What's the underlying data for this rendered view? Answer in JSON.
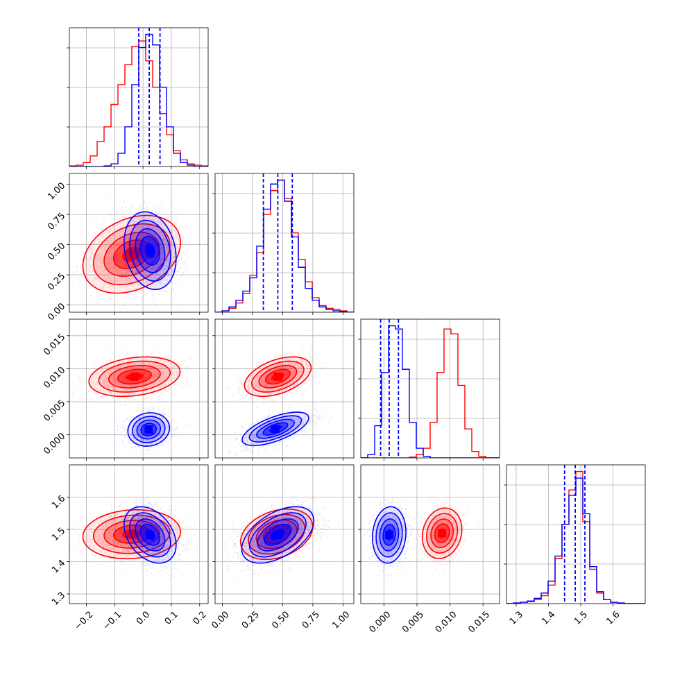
{
  "chart_data": {
    "type": "corner",
    "grid": true,
    "legend": "none",
    "colors": {
      "model_a": "#ff0000",
      "model_b": "#0000ff"
    },
    "parameters": [
      {
        "range": [
          -0.26,
          0.23
        ],
        "ticks": [
          -0.2,
          -0.1,
          0.0,
          0.1,
          0.2
        ],
        "tick_labels": [
          "−0.2",
          "−0.1",
          "0.0",
          "0.1",
          "0.2"
        ]
      },
      {
        "range": [
          -0.06,
          1.09
        ],
        "ticks": [
          0.0,
          0.25,
          0.5,
          0.75,
          1.0
        ],
        "tick_labels": [
          "0.00",
          "0.25",
          "0.50",
          "0.75",
          "1.00"
        ]
      },
      {
        "range": [
          -0.0035,
          0.0175
        ],
        "ticks": [
          0.0,
          0.005,
          0.01,
          0.015
        ],
        "tick_labels": [
          "0.000",
          "0.005",
          "0.010",
          "0.015"
        ]
      },
      {
        "range": [
          1.27,
          1.7
        ],
        "ticks": [
          1.3,
          1.4,
          1.5,
          1.6
        ],
        "tick_labels": [
          "1.3",
          "1.4",
          "1.5",
          "1.6"
        ]
      }
    ],
    "quantiles": [
      [
        -0.015,
        0.022,
        0.06
      ],
      [
        0.34,
        0.46,
        0.58
      ],
      [
        -0.0005,
        0.0008,
        0.0022
      ],
      [
        1.45,
        1.483,
        1.513
      ]
    ],
    "diagonal_hist": [
      {
        "edges": [
          -0.26,
          -0.2355,
          -0.211,
          -0.1865,
          -0.162,
          -0.1375,
          -0.113,
          -0.0885,
          -0.064,
          -0.0395,
          -0.015,
          0.0095,
          0.034,
          0.0585,
          0.083,
          0.1075,
          0.132,
          0.1565,
          0.181,
          0.2055,
          0.23
        ],
        "red": [
          0.005,
          0.01,
          0.03,
          0.08,
          0.19,
          0.3,
          0.47,
          0.62,
          0.77,
          0.91,
          0.95,
          0.8,
          0.6,
          0.4,
          0.24,
          0.12,
          0.05,
          0.02,
          0.01,
          0.005
        ],
        "blue": [
          0,
          0,
          0,
          0,
          0,
          0.005,
          0.02,
          0.1,
          0.3,
          0.62,
          0.9,
          1.0,
          0.92,
          0.6,
          0.3,
          0.1,
          0.03,
          0.01,
          0,
          0
        ]
      },
      {
        "edges": [
          -0.06,
          -0.0025,
          0.055,
          0.1125,
          0.17,
          0.2275,
          0.285,
          0.3425,
          0.4,
          0.4575,
          0.515,
          0.5725,
          0.63,
          0.6875,
          0.745,
          0.8025,
          0.86,
          0.9175,
          0.975,
          1.0325,
          1.09
        ],
        "red": [
          0,
          0.01,
          0.03,
          0.07,
          0.14,
          0.28,
          0.45,
          0.74,
          0.92,
          1.0,
          0.86,
          0.6,
          0.4,
          0.23,
          0.11,
          0.05,
          0.03,
          0.02,
          0.01,
          0
        ],
        "blue": [
          0,
          0.01,
          0.04,
          0.09,
          0.16,
          0.26,
          0.5,
          0.78,
          0.97,
          1.0,
          0.84,
          0.57,
          0.34,
          0.18,
          0.09,
          0.04,
          0.02,
          0.01,
          0.005,
          0
        ]
      },
      {
        "edges": [
          -0.0035,
          -0.00245,
          -0.0014,
          -0.00035,
          0.0007,
          0.00175,
          0.0028,
          0.00385,
          0.0049,
          0.00595,
          0.007,
          0.00805,
          0.0091,
          0.01015,
          0.0112,
          0.01225,
          0.0133,
          0.01435,
          0.0154,
          0.01645,
          0.0175
        ],
        "red": [
          0,
          0,
          0,
          0,
          0,
          0,
          0,
          0.005,
          0.02,
          0.06,
          0.22,
          0.53,
          0.8,
          0.77,
          0.45,
          0.18,
          0.04,
          0.01,
          0,
          0
        ],
        "blue": [
          0,
          0.02,
          0.2,
          0.53,
          0.82,
          0.8,
          0.55,
          0.22,
          0.06,
          0.01,
          0,
          0,
          0,
          0,
          0,
          0,
          0,
          0,
          0,
          0
        ]
      },
      {
        "edges": [
          1.27,
          1.2915,
          1.313,
          1.3345,
          1.356,
          1.3775,
          1.399,
          1.4205,
          1.442,
          1.4635,
          1.485,
          1.5065,
          1.528,
          1.5495,
          1.571,
          1.5925,
          1.614,
          1.6355,
          1.657,
          1.6785,
          1.7
        ],
        "red": [
          0,
          0.005,
          0.01,
          0.015,
          0.03,
          0.06,
          0.14,
          0.34,
          0.6,
          0.86,
          1.0,
          0.62,
          0.26,
          0.08,
          0.03,
          0.01,
          0.005,
          0,
          0,
          0
        ],
        "blue": [
          0,
          0.005,
          0.01,
          0.02,
          0.04,
          0.08,
          0.17,
          0.36,
          0.6,
          0.82,
          0.95,
          0.68,
          0.28,
          0.09,
          0.03,
          0.01,
          0.005,
          0,
          0,
          0
        ]
      }
    ],
    "pairs": [
      {
        "row": 1,
        "col": 0,
        "red": {
          "mean": [
            -0.04,
            0.42
          ],
          "sd": [
            0.075,
            0.14
          ],
          "rho": 0.3
        },
        "blue": {
          "mean": [
            0.025,
            0.45
          ],
          "sd": [
            0.04,
            0.14
          ],
          "rho": -0.2
        }
      },
      {
        "row": 2,
        "col": 0,
        "red": {
          "mean": [
            -0.03,
            0.0088
          ],
          "sd": [
            0.07,
            0.0013
          ],
          "rho": 0.25
        },
        "blue": {
          "mean": [
            0.02,
            0.0008
          ],
          "sd": [
            0.032,
            0.0011
          ],
          "rho": 0.1
        }
      },
      {
        "row": 2,
        "col": 1,
        "red": {
          "mean": [
            0.46,
            0.0088
          ],
          "sd": [
            0.12,
            0.0013
          ],
          "rho": 0.45
        },
        "blue": {
          "mean": [
            0.44,
            0.0009
          ],
          "sd": [
            0.12,
            0.0011
          ],
          "rho": 0.65
        }
      },
      {
        "row": 3,
        "col": 0,
        "red": {
          "mean": [
            -0.04,
            1.485
          ],
          "sd": [
            0.075,
            0.033
          ],
          "rho": 0.1
        },
        "blue": {
          "mean": [
            0.025,
            1.483
          ],
          "sd": [
            0.04,
            0.038
          ],
          "rho": -0.35
        }
      },
      {
        "row": 3,
        "col": 1,
        "red": {
          "mean": [
            0.45,
            1.485
          ],
          "sd": [
            0.13,
            0.034
          ],
          "rho": 0.3
        },
        "blue": {
          "mean": [
            0.46,
            1.483
          ],
          "sd": [
            0.13,
            0.038
          ],
          "rho": 0.5
        }
      },
      {
        "row": 3,
        "col": 2,
        "red": {
          "mean": [
            0.0088,
            1.488
          ],
          "sd": [
            0.0013,
            0.034
          ],
          "rho": 0.15
        },
        "blue": {
          "mean": [
            0.0008,
            1.483
          ],
          "sd": [
            0.0011,
            0.038
          ],
          "rho": 0.1
        }
      }
    ]
  }
}
